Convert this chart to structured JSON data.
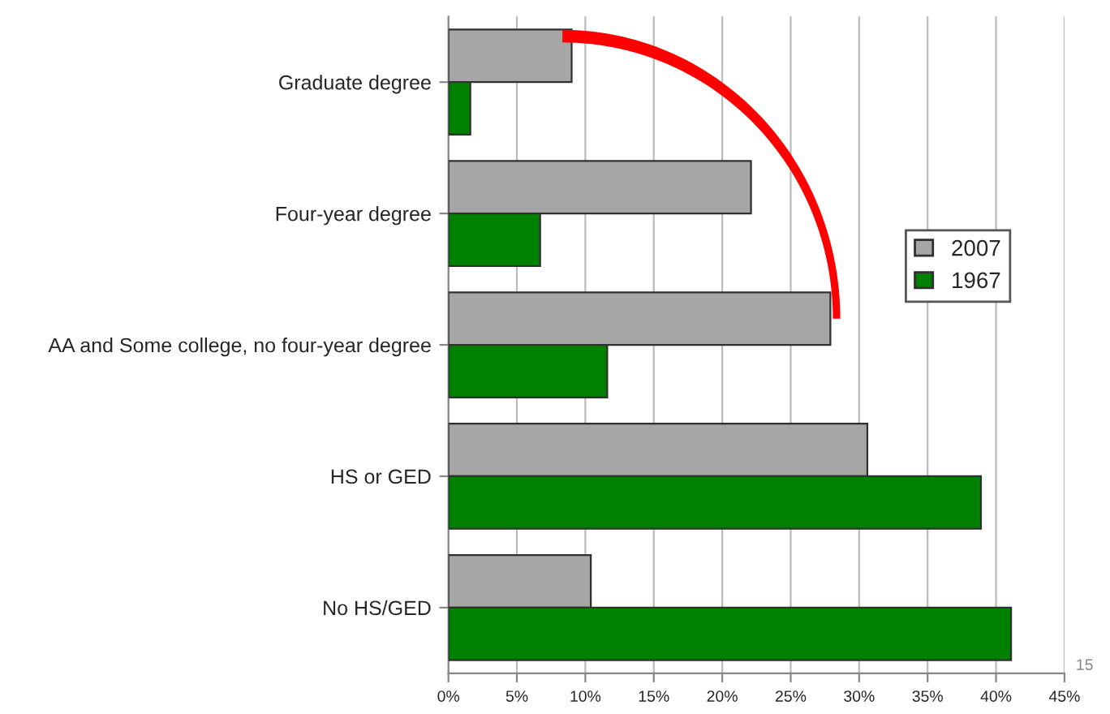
{
  "chart_data": {
    "type": "bar",
    "orientation": "horizontal",
    "categories": [
      "Graduate degree",
      "Four-year degree",
      "AA and Some college, no four-year degree",
      "HS or GED",
      "No HS/GED"
    ],
    "series": [
      {
        "name": "2007",
        "color": "#a6a6a6",
        "values": [
          9.0,
          22.1,
          27.9,
          30.6,
          10.4
        ]
      },
      {
        "name": "1967",
        "color": "#008000",
        "values": [
          1.6,
          6.7,
          11.6,
          38.9,
          41.1
        ]
      }
    ],
    "xlim": [
      0,
      45
    ],
    "xticks": [
      {
        "value": 0,
        "label": "0%"
      },
      {
        "value": 5,
        "label": "5%"
      },
      {
        "value": 10,
        "label": "10%"
      },
      {
        "value": 15,
        "label": "15%"
      },
      {
        "value": 20,
        "label": "20%"
      },
      {
        "value": 25,
        "label": "25%"
      },
      {
        "value": 30,
        "label": "30%"
      },
      {
        "value": 35,
        "label": "35%"
      },
      {
        "value": 40,
        "label": "40%"
      },
      {
        "value": 45,
        "label": "45%"
      }
    ],
    "grid": "x",
    "legend": "right",
    "annotations": [
      "15"
    ]
  }
}
